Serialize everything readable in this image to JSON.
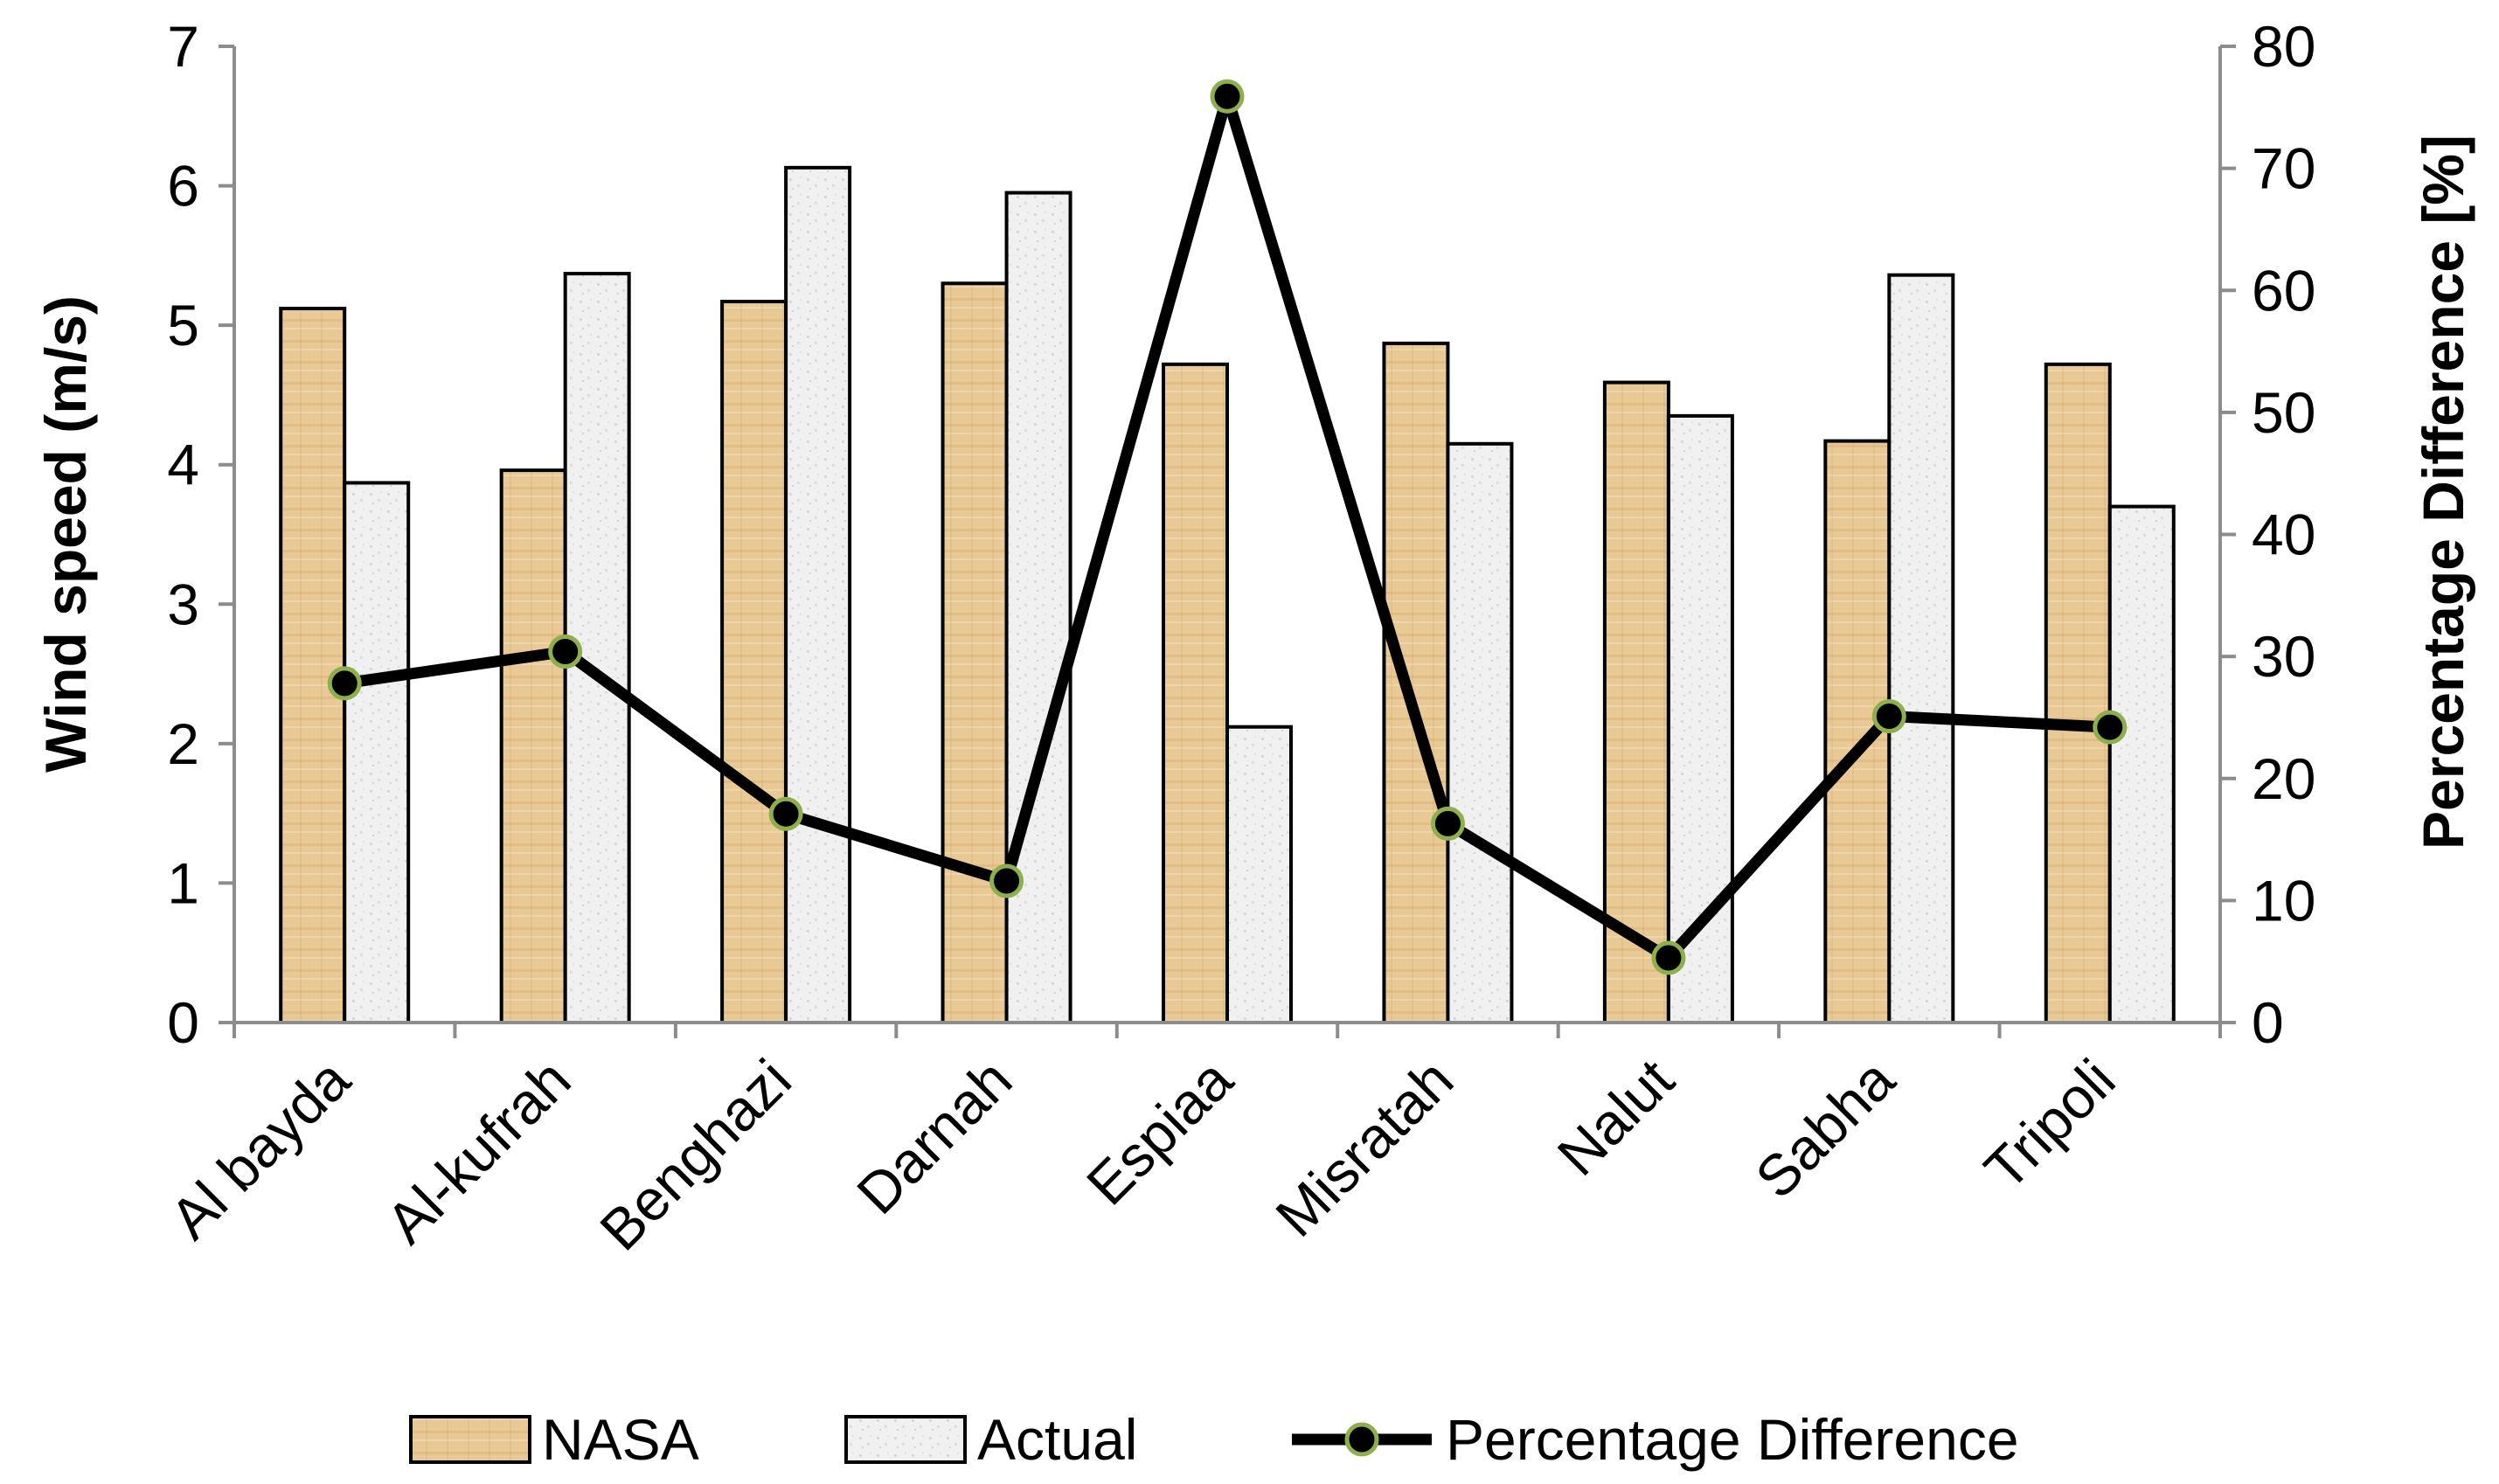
{
  "chart_data": {
    "type": "bar",
    "categories": [
      "Al bayda",
      "Al-kufrah",
      "Benghazi",
      "Darnah",
      "Espiaa",
      "Misratah",
      "Nalut",
      "Sabha",
      "Tripoli"
    ],
    "series": [
      {
        "name": "NASA",
        "kind": "bar",
        "axis": "left",
        "values": [
          5.12,
          3.96,
          5.17,
          5.3,
          4.72,
          4.87,
          4.59,
          4.17,
          4.72
        ]
      },
      {
        "name": "Actual",
        "kind": "bar",
        "axis": "left",
        "values": [
          3.87,
          5.37,
          6.13,
          5.95,
          2.12,
          4.15,
          4.35,
          5.36,
          3.7
        ]
      },
      {
        "name": "Percentage Difference",
        "kind": "line",
        "axis": "right",
        "values": [
          27.8,
          30.4,
          17.1,
          11.6,
          75.9,
          16.3,
          5.3,
          25.1,
          24.2
        ]
      }
    ],
    "ylabel": "Wind speed (m/s)",
    "y2label": "Percentage Difference [%]",
    "ylim": [
      0,
      7
    ],
    "y2lim": [
      0,
      80
    ],
    "yticks": [
      "0",
      "1",
      "2",
      "3",
      "4",
      "5",
      "6",
      "7"
    ],
    "y2ticks": [
      "0",
      "10",
      "20",
      "30",
      "40",
      "50",
      "60",
      "70",
      "80"
    ],
    "legend_position": "bottom",
    "grid": false,
    "colors": {
      "nasa_fill": "#e8c99a",
      "nasa_fill_dark": "#d4ae72",
      "actual_fill": "#eeeeee",
      "actual_fill_dark": "#d9d9d9",
      "line": "#000000",
      "marker_edge": "#8db04a",
      "axis": "#8c8c8c"
    }
  }
}
